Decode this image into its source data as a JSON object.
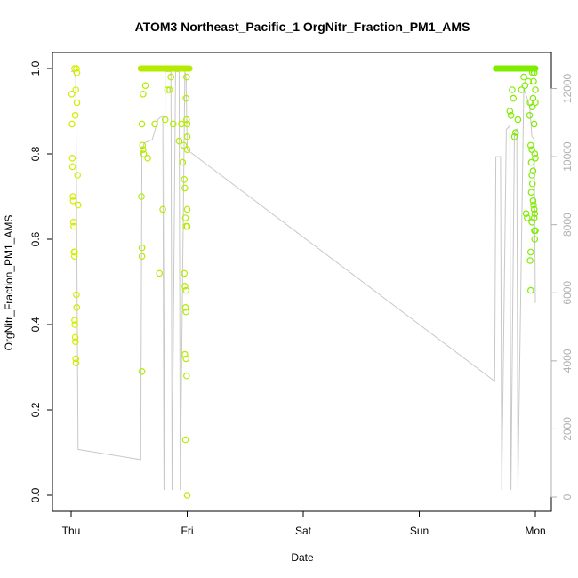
{
  "chart_data": {
    "type": "scatter",
    "title": "ATOM3 Northeast_Pacific_1 OrgNitr_Fraction_PM1_AMS",
    "xlabel": "Date",
    "ylabel": "OrgNitr_Fraction_PM1_AMS",
    "x_ticks": [
      {
        "x": 0,
        "label": "Thu"
      },
      {
        "x": 1,
        "label": "Fri"
      },
      {
        "x": 2,
        "label": "Sat"
      },
      {
        "x": 3,
        "label": "Sun"
      },
      {
        "x": 4,
        "label": "Mon"
      }
    ],
    "y_left": {
      "lim": [
        -0.04,
        1.04
      ],
      "ticks": [
        "0.0",
        "0.2",
        "0.4",
        "0.6",
        "0.8",
        "1.0"
      ]
    },
    "y_right": {
      "lim": [
        -500,
        13000
      ],
      "ticks": [
        "0",
        "2000",
        "4000",
        "6000",
        "8000",
        "10000",
        "12000"
      ]
    },
    "colors": {
      "axis": "#000000",
      "altitude_line": "#c8c8c8",
      "right_axis": "#b0b0b0",
      "series_early": "#d4ec00",
      "series_mid": "#b4ec00",
      "series_late": "#80ec00"
    },
    "series": [
      {
        "points": [
          {
            "x": 0.005,
            "y": 0.94
          },
          {
            "x": 0.008,
            "y": 0.87
          },
          {
            "x": 0.01,
            "y": 0.79
          },
          {
            "x": 0.012,
            "y": 0.77
          },
          {
            "x": 0.015,
            "y": 0.7
          },
          {
            "x": 0.018,
            "y": 0.69
          },
          {
            "x": 0.02,
            "y": 0.64
          },
          {
            "x": 0.022,
            "y": 0.63
          },
          {
            "x": 0.025,
            "y": 0.57
          },
          {
            "x": 0.028,
            "y": 0.56
          },
          {
            "x": 0.03,
            "y": 0.41
          },
          {
            "x": 0.032,
            "y": 0.4
          },
          {
            "x": 0.035,
            "y": 0.37
          },
          {
            "x": 0.037,
            "y": 0.36
          },
          {
            "x": 0.04,
            "y": 0.32
          },
          {
            "x": 0.042,
            "y": 0.31
          },
          {
            "x": 0.045,
            "y": 0.47
          },
          {
            "x": 0.048,
            "y": 0.44
          },
          {
            "x": 0.035,
            "y": 0.89
          },
          {
            "x": 0.04,
            "y": 0.95
          },
          {
            "x": 0.05,
            "y": 0.92
          },
          {
            "x": 0.055,
            "y": 0.75
          },
          {
            "x": 0.06,
            "y": 0.68
          },
          {
            "x": 0.03,
            "y": 1.0
          },
          {
            "x": 0.045,
            "y": 1.0
          },
          {
            "x": 0.05,
            "y": 0.99
          },
          {
            "x": 0.03,
            "y": 0.57
          },
          {
            "x": 0.61,
            "y": 0.87
          },
          {
            "x": 0.605,
            "y": 0.7
          },
          {
            "x": 0.615,
            "y": 0.82
          },
          {
            "x": 0.62,
            "y": 0.81
          },
          {
            "x": 0.625,
            "y": 0.8
          },
          {
            "x": 0.61,
            "y": 0.58
          },
          {
            "x": 0.61,
            "y": 0.56
          },
          {
            "x": 0.61,
            "y": 0.29
          },
          {
            "x": 0.62,
            "y": 0.94
          },
          {
            "x": 0.64,
            "y": 0.96
          },
          {
            "x": 0.66,
            "y": 0.79
          },
          {
            "x": 0.72,
            "y": 0.87
          },
          {
            "x": 0.76,
            "y": 0.52
          },
          {
            "x": 0.79,
            "y": 0.67
          },
          {
            "x": 0.81,
            "y": 0.88
          },
          {
            "x": 0.83,
            "y": 0.95
          },
          {
            "x": 0.85,
            "y": 0.95
          },
          {
            "x": 0.86,
            "y": 0.98
          },
          {
            "x": 0.88,
            "y": 0.87
          },
          {
            "x": 0.93,
            "y": 0.83
          },
          {
            "x": 0.95,
            "y": 0.87
          },
          {
            "x": 0.96,
            "y": 0.78
          },
          {
            "x": 0.97,
            "y": 0.82
          },
          {
            "x": 0.975,
            "y": 0.74
          },
          {
            "x": 0.98,
            "y": 0.72
          },
          {
            "x": 0.985,
            "y": 0.65
          },
          {
            "x": 0.99,
            "y": 0.63
          },
          {
            "x": 0.975,
            "y": 0.52
          },
          {
            "x": 0.98,
            "y": 0.49
          },
          {
            "x": 0.99,
            "y": 0.48
          },
          {
            "x": 0.985,
            "y": 0.44
          },
          {
            "x": 0.99,
            "y": 0.43
          },
          {
            "x": 0.98,
            "y": 0.33
          },
          {
            "x": 0.99,
            "y": 0.32
          },
          {
            "x": 0.995,
            "y": 0.28
          },
          {
            "x": 0.985,
            "y": 0.13
          },
          {
            "x": 1.0,
            "y": 0.0
          },
          {
            "x": 1.0,
            "y": 0.67
          },
          {
            "x": 1.0,
            "y": 0.63
          },
          {
            "x": 0.99,
            "y": 0.93
          },
          {
            "x": 0.995,
            "y": 0.88
          },
          {
            "x": 1.0,
            "y": 0.84
          },
          {
            "x": 1.0,
            "y": 0.81
          },
          {
            "x": 0.995,
            "y": 0.98
          },
          {
            "x": 1.0,
            "y": 0.87
          }
        ]
      },
      {
        "points": [
          {
            "x": 3.78,
            "y": 0.9
          },
          {
            "x": 3.79,
            "y": 0.89
          },
          {
            "x": 3.8,
            "y": 0.95
          },
          {
            "x": 3.81,
            "y": 0.93
          },
          {
            "x": 3.82,
            "y": 0.84
          },
          {
            "x": 3.83,
            "y": 0.85
          },
          {
            "x": 3.85,
            "y": 0.88
          },
          {
            "x": 3.88,
            "y": 0.95
          },
          {
            "x": 3.9,
            "y": 0.98
          },
          {
            "x": 3.91,
            "y": 0.96
          },
          {
            "x": 3.92,
            "y": 0.66
          },
          {
            "x": 3.93,
            "y": 0.65
          },
          {
            "x": 3.94,
            "y": 0.97
          },
          {
            "x": 3.95,
            "y": 0.89
          },
          {
            "x": 3.955,
            "y": 0.92
          },
          {
            "x": 3.96,
            "y": 0.82
          },
          {
            "x": 3.965,
            "y": 0.78
          },
          {
            "x": 3.97,
            "y": 0.75
          },
          {
            "x": 3.975,
            "y": 0.73
          },
          {
            "x": 3.98,
            "y": 0.69
          },
          {
            "x": 3.985,
            "y": 0.68
          },
          {
            "x": 3.99,
            "y": 0.65
          },
          {
            "x": 3.992,
            "y": 0.62
          },
          {
            "x": 3.995,
            "y": 0.6
          },
          {
            "x": 3.96,
            "y": 0.57
          },
          {
            "x": 3.955,
            "y": 0.55
          },
          {
            "x": 3.96,
            "y": 0.48
          },
          {
            "x": 3.965,
            "y": 0.71
          },
          {
            "x": 3.97,
            "y": 0.81
          },
          {
            "x": 3.975,
            "y": 0.91
          },
          {
            "x": 3.98,
            "y": 0.93
          },
          {
            "x": 3.99,
            "y": 0.87
          },
          {
            "x": 3.995,
            "y": 0.8
          },
          {
            "x": 4.0,
            "y": 0.79
          },
          {
            "x": 4.0,
            "y": 0.95
          },
          {
            "x": 3.99,
            "y": 0.99
          },
          {
            "x": 3.985,
            "y": 0.97
          },
          {
            "x": 3.975,
            "y": 0.99
          },
          {
            "x": 4.0,
            "y": 0.92
          },
          {
            "x": 3.98,
            "y": 0.76
          },
          {
            "x": 3.99,
            "y": 0.67
          },
          {
            "x": 3.995,
            "y": 0.66
          },
          {
            "x": 4.0,
            "y": 0.62
          },
          {
            "x": 3.97,
            "y": 0.64
          }
        ]
      }
    ],
    "dense_segments_at_one": [
      {
        "x_start": 0.6,
        "x_end": 1.02
      },
      {
        "x_start": 3.66,
        "x_end": 4.0
      }
    ],
    "altitude_line": [
      {
        "x": 0.0,
        "y": 12500
      },
      {
        "x": 0.02,
        "y": 12500
      },
      {
        "x": 0.04,
        "y": 12300
      },
      {
        "x": 0.06,
        "y": 1400
      },
      {
        "x": 0.6,
        "y": 1100
      },
      {
        "x": 0.61,
        "y": 10200
      },
      {
        "x": 0.63,
        "y": 10400
      },
      {
        "x": 0.7,
        "y": 10500
      },
      {
        "x": 0.75,
        "y": 11100
      },
      {
        "x": 0.79,
        "y": 11200
      },
      {
        "x": 0.8,
        "y": 200
      },
      {
        "x": 0.81,
        "y": 12500
      },
      {
        "x": 0.86,
        "y": 12500
      },
      {
        "x": 0.87,
        "y": 200
      },
      {
        "x": 0.9,
        "y": 12500
      },
      {
        "x": 0.93,
        "y": 12500
      },
      {
        "x": 0.94,
        "y": 200
      },
      {
        "x": 0.98,
        "y": 12500
      },
      {
        "x": 0.99,
        "y": 12300
      },
      {
        "x": 1.0,
        "y": 10200
      },
      {
        "x": 3.65,
        "y": 3400
      },
      {
        "x": 3.66,
        "y": 10000
      },
      {
        "x": 3.7,
        "y": 10000
      },
      {
        "x": 3.71,
        "y": 200
      },
      {
        "x": 3.75,
        "y": 10800
      },
      {
        "x": 3.78,
        "y": 10900
      },
      {
        "x": 3.79,
        "y": 200
      },
      {
        "x": 3.82,
        "y": 10700
      },
      {
        "x": 3.84,
        "y": 10800
      },
      {
        "x": 3.85,
        "y": 300
      },
      {
        "x": 3.9,
        "y": 12000
      },
      {
        "x": 3.95,
        "y": 11500
      },
      {
        "x": 3.97,
        "y": 10600
      },
      {
        "x": 3.99,
        "y": 10500
      },
      {
        "x": 4.0,
        "y": 5700
      }
    ]
  }
}
